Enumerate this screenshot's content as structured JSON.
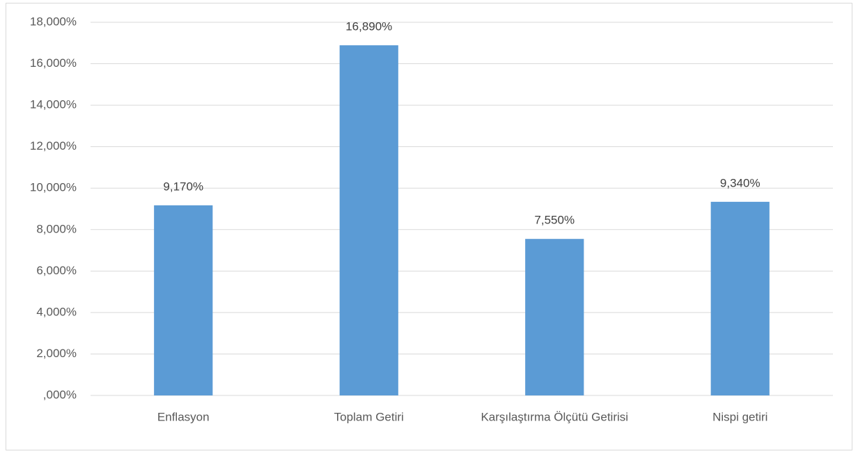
{
  "chart_data": {
    "type": "bar",
    "categories": [
      "Enflasyon",
      "Toplam Getiri",
      "Karşılaştırma Ölçütü Getirisi",
      "Nispi getiri"
    ],
    "values": [
      9.17,
      16.89,
      7.55,
      9.34
    ],
    "value_labels": [
      "9,170%",
      "16,890%",
      "7,550%",
      "9,340%"
    ],
    "color": "#5b9bd5",
    "ylim": [
      0,
      18
    ],
    "yticks": [
      {
        "value": 0,
        "label": ",000%"
      },
      {
        "value": 2,
        "label": "2,000%"
      },
      {
        "value": 4,
        "label": "4,000%"
      },
      {
        "value": 6,
        "label": "6,000%"
      },
      {
        "value": 8,
        "label": "8,000%"
      },
      {
        "value": 10,
        "label": "10,000%"
      },
      {
        "value": 12,
        "label": "12,000%"
      },
      {
        "value": 14,
        "label": "14,000%"
      },
      {
        "value": 16,
        "label": "16,000%"
      },
      {
        "value": 18,
        "label": "18,000%"
      }
    ],
    "grid": true
  }
}
